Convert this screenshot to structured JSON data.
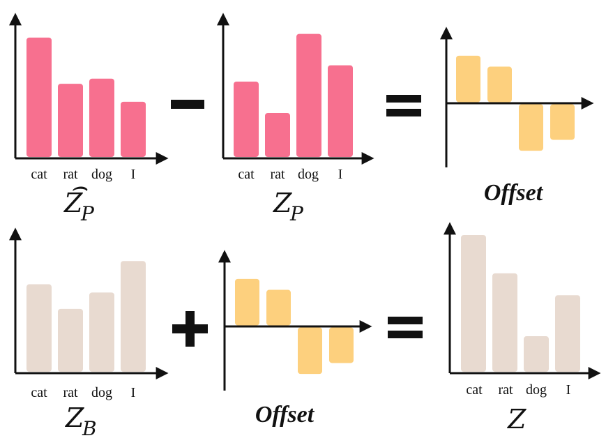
{
  "colors": {
    "pink": "#F7708F",
    "orange": "#FDD07E",
    "beige": "#E8DAD0",
    "axis": "#111111"
  },
  "operators": {
    "minus": "−",
    "plus": "+",
    "equals": "="
  },
  "chart_data": [
    {
      "id": "zp_hat",
      "type": "bar",
      "color": "pink",
      "categories": [
        "cat",
        "rat",
        "dog",
        "I"
      ],
      "values": [
        0.93,
        0.57,
        0.61,
        0.43
      ],
      "ylim": [
        0,
        1
      ],
      "label_main": "Z",
      "label_sub": "P",
      "label_hat": "⌢"
    },
    {
      "id": "zp",
      "type": "bar",
      "color": "pink",
      "categories": [
        "cat",
        "rat",
        "dog",
        "I"
      ],
      "values": [
        0.6,
        0.35,
        0.98,
        0.73
      ],
      "ylim": [
        0,
        1
      ],
      "label_main": "Z",
      "label_sub": "P"
    },
    {
      "id": "offset_top",
      "type": "bar",
      "color": "orange",
      "categories": [
        "cat",
        "rat",
        "dog",
        "I"
      ],
      "values": [
        0.34,
        0.26,
        -0.34,
        -0.26
      ],
      "ylim": [
        -0.49,
        0.49
      ],
      "label_text": "Offset"
    },
    {
      "id": "zb",
      "type": "bar",
      "color": "beige",
      "categories": [
        "cat",
        "rat",
        "dog",
        "I"
      ],
      "values": [
        0.64,
        0.46,
        0.58,
        0.81
      ],
      "ylim": [
        0,
        1
      ],
      "label_main": "Z",
      "label_sub": "B"
    },
    {
      "id": "offset_bottom",
      "type": "bar",
      "color": "orange",
      "categories": [
        "cat",
        "rat",
        "dog",
        "I"
      ],
      "values": [
        0.34,
        0.26,
        -0.34,
        -0.26
      ],
      "ylim": [
        -0.49,
        0.49
      ],
      "label_text": "Offset"
    },
    {
      "id": "z",
      "type": "bar",
      "color": "beige",
      "categories": [
        "cat",
        "rat",
        "dog",
        "I"
      ],
      "values": [
        1.0,
        0.72,
        0.26,
        0.56
      ],
      "ylim": [
        0,
        1
      ],
      "label_main": "Z"
    }
  ]
}
